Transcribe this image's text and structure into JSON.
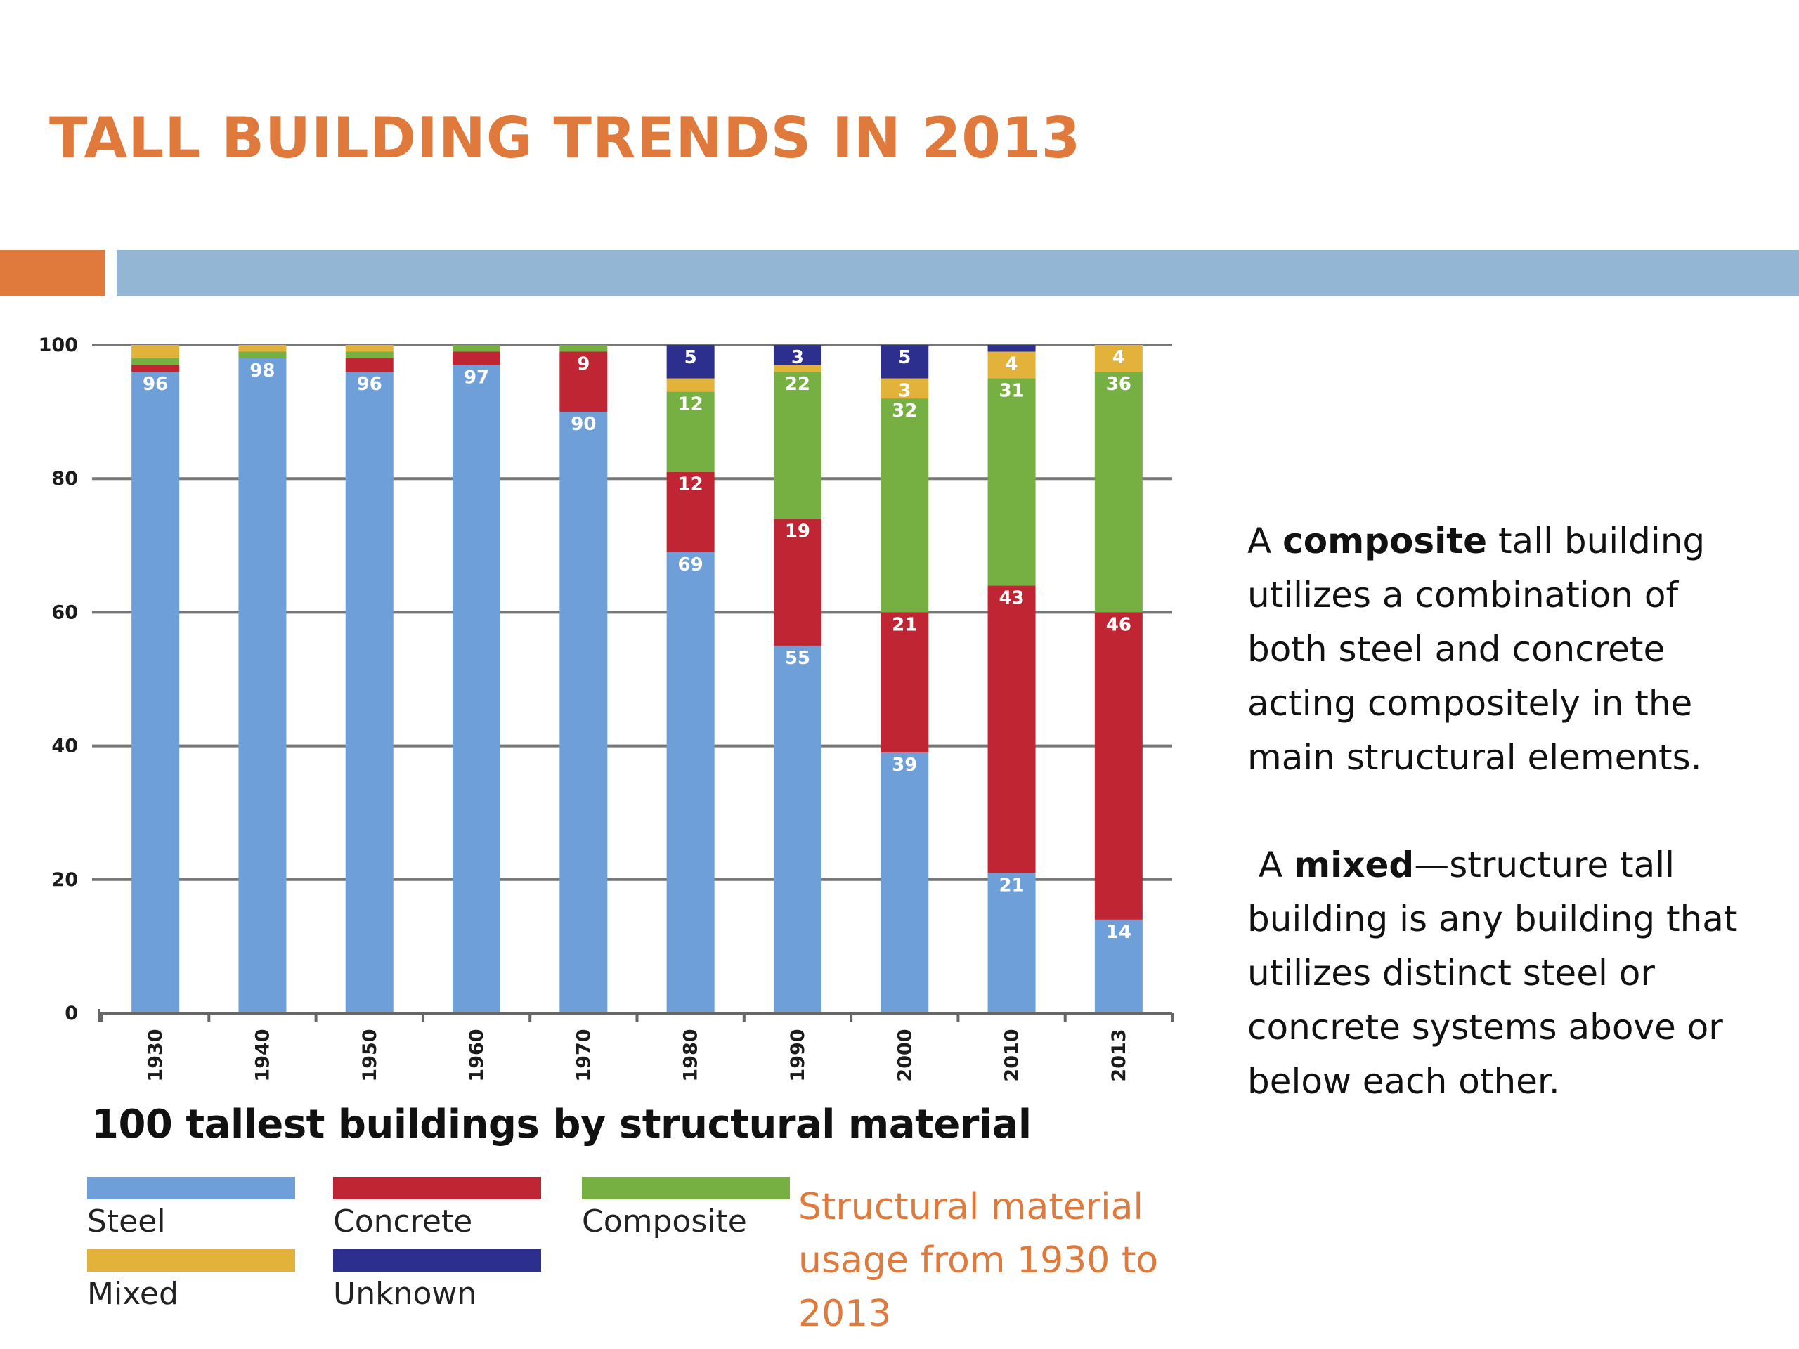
{
  "slide": {
    "title": "TALL BUILDING TRENDS IN 2013"
  },
  "accent_colors": {
    "orange": "#e07a3c",
    "blue": "#93b6d5"
  },
  "chart_data": {
    "type": "bar",
    "stacked": true,
    "title": "100 tallest buildings by structural material",
    "xlabel": "",
    "ylabel": "",
    "ylim": [
      0,
      100
    ],
    "yticks": [
      0,
      20,
      40,
      60,
      80,
      100
    ],
    "grid": true,
    "legend_position": "bottom",
    "categories": [
      "1930",
      "1940",
      "1950",
      "1960",
      "1970",
      "1980",
      "1990",
      "2000",
      "2010",
      "2013"
    ],
    "series": [
      {
        "name": "Steel",
        "color": "#6f9fd8",
        "values": [
          96,
          98,
          96,
          97,
          90,
          69,
          55,
          39,
          21,
          14
        ],
        "labels": [
          "96",
          "98",
          "96",
          "97",
          "90",
          "69",
          "55",
          "39",
          "21",
          "14"
        ]
      },
      {
        "name": "Concrete",
        "color": "#bf2533",
        "values": [
          1,
          0,
          2,
          2,
          9,
          12,
          19,
          21,
          43,
          46
        ],
        "labels": [
          "",
          "",
          "",
          "",
          "9",
          "12",
          "19",
          "21",
          "43",
          "46"
        ]
      },
      {
        "name": "Composite",
        "color": "#76b043",
        "values": [
          1,
          1,
          1,
          1,
          1,
          12,
          22,
          32,
          31,
          36
        ],
        "labels": [
          "",
          "",
          "",
          "",
          "",
          "12",
          "22",
          "32",
          "31",
          "36"
        ]
      },
      {
        "name": "Mixed",
        "color": "#e2b23a",
        "values": [
          2,
          1,
          1,
          0,
          0,
          2,
          1,
          3,
          4,
          4
        ],
        "labels": [
          "",
          "",
          "",
          "",
          "",
          "",
          "",
          "3",
          "4",
          "4"
        ]
      },
      {
        "name": "Unknown",
        "color": "#2d2f8e",
        "values": [
          0,
          0,
          0,
          0,
          0,
          5,
          3,
          5,
          1,
          0
        ],
        "labels": [
          "",
          "",
          "",
          "",
          "",
          "5",
          "3",
          "5",
          "",
          ""
        ]
      }
    ]
  },
  "caption": "Structural material usage from 1930 to 2013",
  "definitions": {
    "composite": {
      "prefix": "A ",
      "term": "composite",
      "rest": " tall building utilizes a combination of both steel and concrete acting compositely in the main structural elements."
    },
    "mixed": {
      "prefix": "A ",
      "term": "mixed",
      "rest": "—structure tall building is any building that utilizes distinct steel or concrete systems above or below each other."
    }
  }
}
